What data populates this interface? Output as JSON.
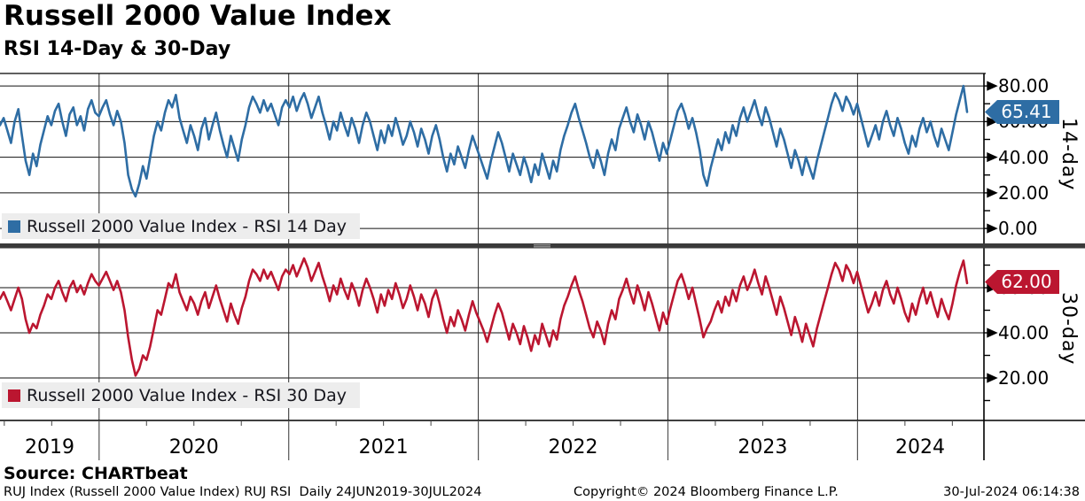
{
  "header": {
    "title": "Russell 2000 Value Index",
    "subtitle": "RSI 14-Day & 30-Day"
  },
  "chart_data": {
    "type": "line",
    "title": "Russell 2000 Value Index",
    "subtitle": "RSI 14-Day & 30-Day",
    "x_start": "24JUN2019",
    "x_end": "30JUL2024",
    "x_year_labels": [
      "2019",
      "2020",
      "2021",
      "2022",
      "2023",
      "2024"
    ],
    "grid": true,
    "legend_position": "inside-bottom-left",
    "panels": [
      {
        "name": "RSI 14 Day",
        "axis_title": "14-day",
        "legend": "Russell 2000 Value Index - RSI 14 Day",
        "color": "#2E6DA4",
        "ylim": [
          0,
          87
        ],
        "yticks": [
          "80.00",
          "60.00",
          "40.00",
          "20.00",
          "0.00"
        ],
        "last_value": "65.41",
        "last_value_num": 65.41,
        "values": [
          58,
          62,
          55,
          48,
          60,
          67,
          52,
          38,
          30,
          42,
          35,
          47,
          55,
          63,
          58,
          66,
          70,
          60,
          52,
          64,
          68,
          58,
          63,
          55,
          67,
          72,
          65,
          63,
          68,
          72,
          64,
          58,
          66,
          60,
          48,
          30,
          22,
          18,
          25,
          35,
          28,
          40,
          52,
          60,
          55,
          65,
          72,
          68,
          75,
          62,
          55,
          48,
          58,
          52,
          44,
          56,
          62,
          50,
          58,
          65,
          55,
          47,
          40,
          52,
          45,
          38,
          50,
          58,
          68,
          74,
          70,
          65,
          72,
          66,
          70,
          64,
          58,
          68,
          72,
          68,
          74,
          66,
          72,
          76,
          70,
          62,
          68,
          74,
          65,
          58,
          50,
          60,
          55,
          65,
          58,
          52,
          62,
          56,
          48,
          58,
          65,
          60,
          52,
          44,
          55,
          48,
          58,
          52,
          62,
          55,
          47,
          52,
          60,
          54,
          46,
          56,
          50,
          42,
          52,
          58,
          50,
          40,
          32,
          42,
          36,
          46,
          40,
          34,
          44,
          52,
          46,
          40,
          34,
          28,
          38,
          46,
          54,
          48,
          40,
          32,
          42,
          36,
          30,
          40,
          34,
          26,
          36,
          30,
          42,
          35,
          28,
          38,
          32,
          44,
          52,
          58,
          65,
          70,
          62,
          55,
          48,
          40,
          34,
          44,
          38,
          30,
          42,
          50,
          44,
          56,
          62,
          68,
          60,
          54,
          64,
          58,
          50,
          60,
          54,
          46,
          38,
          48,
          42,
          50,
          58,
          66,
          70,
          64,
          56,
          62,
          54,
          44,
          30,
          24,
          34,
          42,
          50,
          44,
          54,
          48,
          58,
          52,
          62,
          68,
          60,
          66,
          72,
          64,
          58,
          68,
          62,
          54,
          46,
          56,
          50,
          42,
          34,
          44,
          38,
          30,
          40,
          34,
          28,
          38,
          46,
          54,
          62,
          70,
          76,
          72,
          66,
          74,
          70,
          64,
          70,
          62,
          54,
          46,
          52,
          58,
          50,
          60,
          66,
          58,
          52,
          62,
          56,
          48,
          42,
          52,
          46,
          56,
          62,
          54,
          60,
          52,
          46,
          56,
          50,
          44,
          54,
          64,
          72,
          80,
          65.41
        ]
      },
      {
        "name": "RSI 30 Day",
        "axis_title": "30-day",
        "legend": "Russell 2000 Value Index - RSI 30 Day",
        "color": "#BB1630",
        "ylim": [
          0,
          77
        ],
        "yticks": [
          "60.00",
          "40.00",
          "20.00"
        ],
        "last_value": "62.00",
        "last_value_num": 62.0,
        "values": [
          55,
          58,
          54,
          50,
          55,
          60,
          55,
          46,
          40,
          44,
          42,
          48,
          52,
          57,
          55,
          60,
          63,
          58,
          54,
          60,
          63,
          58,
          61,
          57,
          62,
          66,
          63,
          61,
          64,
          67,
          63,
          59,
          63,
          58,
          50,
          38,
          28,
          21,
          24,
          30,
          28,
          34,
          42,
          50,
          48,
          55,
          62,
          60,
          66,
          58,
          54,
          50,
          56,
          53,
          48,
          54,
          58,
          51,
          56,
          61,
          55,
          50,
          45,
          53,
          48,
          44,
          51,
          56,
          63,
          68,
          66,
          63,
          68,
          64,
          67,
          63,
          59,
          65,
          68,
          66,
          70,
          65,
          69,
          73,
          69,
          63,
          67,
          71,
          65,
          60,
          54,
          61,
          57,
          64,
          59,
          55,
          62,
          58,
          52,
          59,
          64,
          60,
          55,
          49,
          57,
          52,
          59,
          55,
          62,
          57,
          51,
          55,
          61,
          56,
          50,
          57,
          53,
          47,
          55,
          59,
          53,
          46,
          40,
          47,
          43,
          50,
          46,
          41,
          48,
          54,
          49,
          45,
          41,
          36,
          42,
          48,
          53,
          49,
          43,
          37,
          44,
          40,
          35,
          43,
          38,
          32,
          39,
          35,
          44,
          39,
          34,
          41,
          37,
          46,
          52,
          56,
          61,
          65,
          59,
          54,
          48,
          42,
          38,
          45,
          41,
          35,
          44,
          50,
          46,
          55,
          59,
          64,
          58,
          53,
          61,
          56,
          50,
          58,
          53,
          47,
          41,
          49,
          44,
          51,
          57,
          63,
          66,
          61,
          55,
          60,
          53,
          46,
          38,
          42,
          45,
          50,
          54,
          49,
          56,
          52,
          59,
          54,
          61,
          65,
          59,
          63,
          68,
          62,
          57,
          65,
          60,
          54,
          48,
          56,
          51,
          45,
          39,
          47,
          42,
          36,
          44,
          39,
          34,
          42,
          48,
          54,
          60,
          66,
          71,
          68,
          63,
          70,
          67,
          62,
          67,
          61,
          55,
          49,
          53,
          58,
          52,
          59,
          63,
          57,
          53,
          60,
          55,
          49,
          45,
          53,
          48,
          55,
          60,
          53,
          58,
          52,
          47,
          55,
          50,
          46,
          53,
          61,
          67,
          72,
          62
        ]
      }
    ]
  },
  "footer": {
    "source": "Source: CHARTbeat",
    "description": "RUJ Index (Russell 2000 Value Index) RUJ RSI  Daily 24JUN2019-30JUL2024",
    "copyright": "Copyright© 2024 Bloomberg Finance L.P.",
    "datetime": "30-Jul-2024 06:14:38"
  }
}
